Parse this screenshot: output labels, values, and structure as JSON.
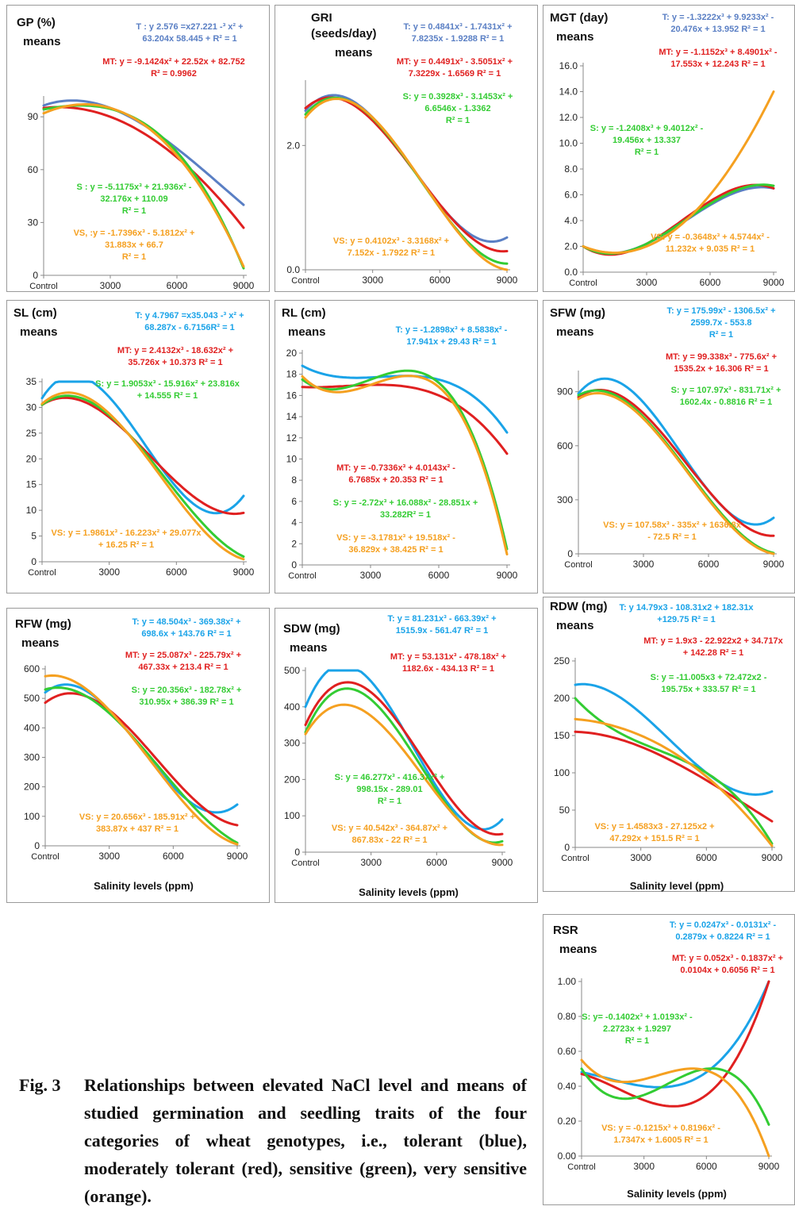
{
  "chart_data": [
    {
      "type": "line",
      "title": "GP (%)",
      "subtitle": "means",
      "categories": [
        "Control",
        "3000",
        "6000",
        "9000"
      ],
      "x": [
        0,
        3000,
        6000,
        9000
      ],
      "ylim": [
        0,
        100
      ],
      "yticks": [
        0,
        30,
        60,
        90
      ],
      "grid": false,
      "series": [
        {
          "name": "T",
          "color": "#5a7fc4",
          "values": [
            96.4,
            95.0,
            72.0,
            40.0
          ],
          "equation": "T : y 2.576 =x27.221 -³ x² +\n63.204x 58.445 + R² = 1"
        },
        {
          "name": "MT",
          "color": "#e02020",
          "values": [
            95.0,
            90.0,
            67.0,
            27.0
          ],
          "equation": "MT: y = -9.1424x² + 22.52x + 82.752\nR² = 0.9962"
        },
        {
          "name": "S",
          "color": "#33cc33",
          "values": [
            94.2,
            94.5,
            70.0,
            4.0
          ],
          "equation": "S : y = -5.1175x³ + 21.936x² -\n32.176x + 110.09\nR² = 1"
        },
        {
          "name": "VS",
          "color": "#f5a020",
          "values": [
            92.0,
            95.0,
            68.0,
            5.0
          ],
          "equation": "VS, :y = -1.7396x³ - 5.1812x² +\n31.883x + 66.7\nR² = 1"
        }
      ]
    },
    {
      "type": "line",
      "title": "GRI\n(seeds/day)",
      "subtitle": "means",
      "categories": [
        "Control",
        "3000",
        "6000",
        "9000"
      ],
      "x": [
        0,
        3000,
        6000,
        9000
      ],
      "ylim": [
        0,
        3
      ],
      "yticks": [
        0.0,
        2.0
      ],
      "ytick_labels": [
        "0.0",
        "2.0"
      ],
      "grid": false,
      "series": [
        {
          "name": "T",
          "color": "#5a7fc4",
          "values": [
            2.56,
            2.45,
            1.05,
            0.52
          ],
          "equation": "T: y = 0.4841x³ - 1.7431x² +\n7.8235x - 1.9288 R² = 1"
        },
        {
          "name": "MT",
          "color": "#e02020",
          "values": [
            2.6,
            2.4,
            1.05,
            0.3
          ],
          "equation": "MT: y = 0.4491x³ - 3.5051x² +\n7.3229x - 1.6569 R² = 1"
        },
        {
          "name": "S",
          "color": "#33cc33",
          "values": [
            2.5,
            2.44,
            1.0,
            0.1
          ],
          "equation": "S: y = 0.3928x³ - 3.1453x² +\n6.6546x - 1.3362\nR² = 1"
        },
        {
          "name": "VS",
          "color": "#f5a020",
          "values": [
            2.45,
            2.45,
            1.0,
            0.0
          ],
          "equation": "VS: y = 0.4102x³ - 3.3168x² +\n7.152x - 1.7922 R² = 1"
        }
      ]
    },
    {
      "type": "line",
      "title": "MGT (day)",
      "subtitle": "means",
      "categories": [
        "Control",
        "3000",
        "6000",
        "9000"
      ],
      "x": [
        0,
        3000,
        6000,
        9000
      ],
      "ylim": [
        0,
        16
      ],
      "yticks": [
        0,
        2,
        4,
        6,
        8,
        10,
        12,
        14,
        16
      ],
      "ytick_labels": [
        "0.0",
        "2.0",
        "4.0",
        "6.0",
        "8.0",
        "10.0",
        "12.0",
        "14.0",
        "16.0"
      ],
      "grid": false,
      "series": [
        {
          "name": "T",
          "color": "#5a7fc4",
          "values": [
            2.0,
            2.2,
            5.2,
            6.5
          ],
          "equation": "T: y = -1.3222x³ + 9.9233x² -\n20.476x + 13.952 R² = 1"
        },
        {
          "name": "MT",
          "color": "#e02020",
          "values": [
            2.0,
            2.2,
            5.5,
            6.5
          ],
          "equation": "MT: y = -1.1152x³ + 8.4901x² -\n17.553x + 12.243 R² = 1"
        },
        {
          "name": "S",
          "color": "#33cc33",
          "values": [
            2.0,
            2.2,
            5.3,
            6.7
          ],
          "equation": "S: y = -1.2408x³ + 9.4012x² -\n19.456x + 13.337\nR² = 1"
        },
        {
          "name": "VS",
          "color": "#f5a020",
          "values": [
            2.0,
            2.0,
            6.0,
            14.0
          ],
          "equation": "VS: y = -0.3648x³ + 4.5744x² -\n11.232x + 9.035 R² = 1"
        }
      ]
    },
    {
      "type": "line",
      "title": "SL (cm)",
      "subtitle": "means",
      "categories": [
        "Control",
        "3000",
        "6000",
        "9000"
      ],
      "x": [
        0,
        3000,
        6000,
        9000
      ],
      "ylim": [
        0,
        35
      ],
      "yticks": [
        0,
        5,
        10,
        15,
        20,
        25,
        30,
        35
      ],
      "grid": false,
      "series": [
        {
          "name": "T",
          "color": "#1aa3e8",
          "values": [
            31.8,
            32.0,
            14.5,
            12.8
          ],
          "equation": "T: y 4.7967 =x35.043 -³ x² +\n68.287x - 6.7156R² = 1"
        },
        {
          "name": "MT",
          "color": "#e02020",
          "values": [
            30.5,
            28.1,
            15.5,
            9.5
          ],
          "equation": "MT: y = 2.4132x³ - 18.632x² +\n35.726x + 10.373 R² = 1"
        },
        {
          "name": "S",
          "color": "#33cc33",
          "values": [
            30.5,
            28.5,
            13.5,
            1.0
          ],
          "equation": "S: y = 1.9053x³ - 15.916x² + 23.816x\n+ 14.555 R² = 1"
        },
        {
          "name": "VS",
          "color": "#f5a020",
          "values": [
            30.7,
            28.8,
            12.5,
            0.5
          ],
          "equation": "VS: y = 1.9861x³ - 16.223x² + 29.077x\n+ 16.25 R² = 1"
        }
      ]
    },
    {
      "type": "line",
      "title": "RL (cm)",
      "subtitle": "means",
      "categories": [
        "Control",
        "3000",
        "6000",
        "9000"
      ],
      "x": [
        0,
        3000,
        6000,
        9000
      ],
      "ylim": [
        0,
        20
      ],
      "yticks": [
        0,
        2,
        4,
        6,
        8,
        10,
        12,
        14,
        16,
        18,
        20
      ],
      "grid": false,
      "series": [
        {
          "name": "T",
          "color": "#1aa3e8",
          "values": [
            18.8,
            17.7,
            17.5,
            12.5
          ],
          "equation": "T: y = -1.2898x³ + 8.5838x² -\n17.941x + 29.43 R² = 1"
        },
        {
          "name": "MT",
          "color": "#e02020",
          "values": [
            16.8,
            17.0,
            16.0,
            10.5
          ],
          "equation": "MT: y = -0.7336x³ + 4.0143x² -\n6.7685x + 20.353 R² = 1"
        },
        {
          "name": "S",
          "color": "#33cc33",
          "values": [
            17.5,
            17.5,
            17.2,
            1.5
          ],
          "equation": "S: y = -2.72x³ + 16.088x² - 28.851x +\n33.282R² = 1"
        },
        {
          "name": "VS",
          "color": "#f5a020",
          "values": [
            17.8,
            17.0,
            16.8,
            1.0
          ],
          "equation": "VS: y = -3.1781x³ + 19.518x² -\n36.829x + 38.425 R² = 1"
        }
      ]
    },
    {
      "type": "line",
      "title": "SFW (mg)",
      "subtitle": "means",
      "categories": [
        "Control",
        "3000",
        "6000",
        "9000"
      ],
      "x": [
        0,
        3000,
        6000,
        9000
      ],
      "ylim": [
        0,
        1000
      ],
      "yticks": [
        0,
        300,
        600,
        900
      ],
      "grid": false,
      "series": [
        {
          "name": "T",
          "color": "#1aa3e8",
          "values": [
            890,
            840,
            350,
            200
          ],
          "equation": "T: y = 175.99x³ - 1306.5x² +\n2599.7x - 553.8\nR² = 1"
        },
        {
          "name": "MT",
          "color": "#e02020",
          "values": [
            870,
            780,
            350,
            100
          ],
          "equation": "MT: y = 99.338x³ - 775.6x² +\n1535.2x + 16.306 R² = 1"
        },
        {
          "name": "S",
          "color": "#33cc33",
          "values": [
            880,
            760,
            310,
            5
          ],
          "equation": "S: y = 107.97x³ - 831.71x² +\n1602.4x - 0.8816 R² = 1"
        },
        {
          "name": "VS",
          "color": "#f5a020",
          "values": [
            860,
            750,
            300,
            0
          ],
          "equation": "VS: y = 107.58x³ - 335x² + 1636.8x\n- 72.5 R² = 1"
        }
      ]
    },
    {
      "type": "line",
      "title": "RFW (mg)",
      "subtitle": "means",
      "xlabel": "Salinity levels (ppm)",
      "categories": [
        "Control",
        "3000",
        "6000",
        "9000"
      ],
      "x": [
        0,
        3000,
        6000,
        9000
      ],
      "ylim": [
        0,
        600
      ],
      "yticks": [
        0,
        100,
        200,
        300,
        400,
        500,
        600
      ],
      "grid": false,
      "series": [
        {
          "name": "T",
          "color": "#1aa3e8",
          "values": [
            520,
            460,
            200,
            140
          ],
          "equation": "T: y = 48.504x³ - 369.38x² +\n698.6x + 143.76 R² = 1"
        },
        {
          "name": "MT",
          "color": "#e02020",
          "values": [
            485,
            460,
            230,
            70
          ],
          "equation": "MT: y = 25.087x³ - 225.79x² +\n467.33x + 213.4 R² = 1"
        },
        {
          "name": "S",
          "color": "#33cc33",
          "values": [
            530,
            450,
            210,
            10
          ],
          "equation": "S: y = 20.356x³ - 182.78x² +\n310.95x + 386.39 R² = 1"
        },
        {
          "name": "VS",
          "color": "#f5a020",
          "values": [
            575,
            460,
            190,
            5
          ],
          "equation": "VS: y = 20.656x³ - 185.91x² +\n383.87x + 437 R² = 1"
        }
      ]
    },
    {
      "type": "line",
      "title": "SDW (mg)",
      "subtitle": "means",
      "xlabel": "Salinity levels (ppm)",
      "categories": [
        "Control",
        "3000",
        "6000",
        "9000"
      ],
      "x": [
        0,
        3000,
        6000,
        9000
      ],
      "ylim": [
        0,
        500
      ],
      "yticks": [
        0,
        100,
        200,
        300,
        400,
        500
      ],
      "grid": false,
      "series": [
        {
          "name": "T",
          "color": "#1aa3e8",
          "values": [
            400,
            470,
            180,
            90
          ],
          "equation": "T: y = 81.231x³ - 663.39x² +\n1515.9x - 561.47 R² = 1"
        },
        {
          "name": "MT",
          "color": "#e02020",
          "values": [
            350,
            440,
            200,
            50
          ],
          "equation": "MT: y = 53.131x³ - 478.18x² +\n1182.6x - 434.13 R² = 1"
        },
        {
          "name": "S",
          "color": "#33cc33",
          "values": [
            330,
            420,
            170,
            30
          ],
          "equation": "S: y = 46.277x³ - 416.37x² +\n998.15x - 289.01\nR² = 1"
        },
        {
          "name": "VS",
          "color": "#f5a020",
          "values": [
            325,
            375,
            160,
            20
          ],
          "equation": "VS: y = 40.542x³ - 364.87x² +\n867.83x - 22 R² = 1"
        }
      ]
    },
    {
      "type": "line",
      "title": "RDW (mg)",
      "subtitle": "means",
      "xlabel": "Salinity level (ppm)",
      "categories": [
        "Control",
        "3000",
        "6000",
        "9000"
      ],
      "x": [
        0,
        3000,
        6000,
        9000
      ],
      "ylim": [
        0,
        250
      ],
      "yticks": [
        0,
        50,
        100,
        150,
        200,
        250
      ],
      "grid": false,
      "series": [
        {
          "name": "T",
          "color": "#1aa3e8",
          "values": [
            218,
            180,
            100,
            75
          ],
          "equation": "T: y 14.79x3 - 108.31x2 + 182.31x\n+129.75 R² = 1"
        },
        {
          "name": "MT",
          "color": "#e02020",
          "values": [
            155,
            135,
            90,
            35
          ],
          "equation": "MT: y = 1.9x3 - 22.922x2 + 34.717x\n+ 142.28 R² = 1"
        },
        {
          "name": "S",
          "color": "#33cc33",
          "values": [
            200,
            140,
            100,
            5
          ],
          "equation": "S: y = -11.005x3 + 72.472x2 -\n195.75x + 333.57 R² = 1"
        },
        {
          "name": "VS",
          "color": "#f5a020",
          "values": [
            172,
            150,
            95,
            2
          ],
          "equation": "VS: y = 1.4583x3 - 27.125x2 +\n47.292x + 151.5 R² = 1"
        }
      ]
    },
    {
      "type": "line",
      "title": "RSR",
      "subtitle": "means",
      "xlabel": "Salinity levels (ppm)",
      "categories": [
        "Control",
        "3000",
        "6000",
        "9000"
      ],
      "x": [
        0,
        3000,
        6000,
        9000
      ],
      "ylim": [
        0,
        1
      ],
      "yticks": [
        0,
        0.2,
        0.4,
        0.6,
        0.8,
        1.0
      ],
      "ytick_labels": [
        "0.00",
        "0.20",
        "0.40",
        "0.60",
        "0.80",
        "1.00"
      ],
      "grid": false,
      "series": [
        {
          "name": "T",
          "color": "#1aa3e8",
          "values": [
            0.48,
            0.4,
            0.48,
            1.0
          ],
          "equation": "T: y = 0.0247x³ - 0.0131x² -\n0.2879x + 0.8224 R² = 1"
        },
        {
          "name": "MT",
          "color": "#e02020",
          "values": [
            0.47,
            0.32,
            0.35,
            1.0
          ],
          "equation": "MT: y = 0.052x³ - 0.1837x² +\n0.0104x + 0.6056 R² = 1"
        },
        {
          "name": "S",
          "color": "#33cc33",
          "values": [
            0.5,
            0.35,
            0.5,
            0.18
          ],
          "equation": "S: y= -0.1402x³ + 1.0193x² -\n2.2723x + 1.9297\nR² = 1"
        },
        {
          "name": "VS",
          "color": "#f5a020",
          "values": [
            0.55,
            0.44,
            0.49,
            0.0
          ],
          "equation": "VS: y = -0.1215x³ + 0.8196x² -\n1.7347x + 1.6005 R² = 1"
        }
      ]
    }
  ],
  "caption": {
    "fig": "Fig. 3",
    "text": "Relationships between elevated NaCl level and means of studied germination and seedling traits of the four categories of wheat genotypes, i.e., tolerant (blue), moderately tolerant (red), sensitive (green), very sensitive (orange)."
  }
}
